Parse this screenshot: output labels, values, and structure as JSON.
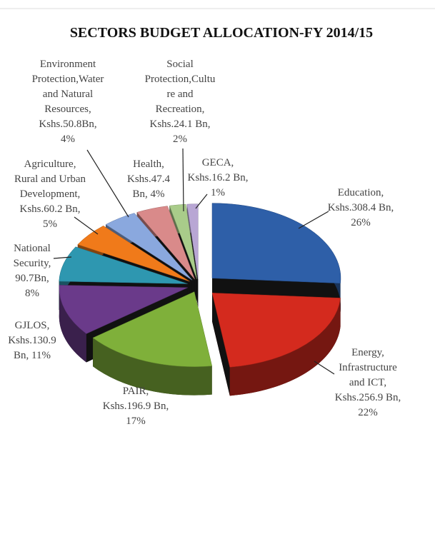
{
  "chart_data": {
    "type": "pie",
    "title": "SECTORS BUDGET ALLOCATION-FY 2014/15",
    "values": [
      308.4,
      256.9,
      196.9,
      130.9,
      90.7,
      60.2,
      50.8,
      47.4,
      24.1,
      16.2
    ],
    "labels": [
      [
        "Education,",
        "Kshs.308.4 Bn,",
        "26%"
      ],
      [
        "Energy,",
        "Infrastructure",
        "and ICT,",
        "Kshs.256.9 Bn,",
        "22%"
      ],
      [
        "PAIR,",
        "Kshs.196.9 Bn,",
        "17%"
      ],
      [
        "GJLOS,",
        "Kshs.130.9",
        "Bn, 11%"
      ],
      [
        "National",
        "Security,",
        "90.7Bn,",
        "8%"
      ],
      [
        "Agriculture,",
        "Rural and Urban",
        "Development,",
        "Kshs.60.2 Bn,",
        "5%"
      ],
      [
        "Environment",
        "Protection,Water",
        "and Natural",
        "Resources,",
        "Kshs.50.8Bn,",
        "4%"
      ],
      [
        "Health,",
        "Kshs.47.4",
        "Bn, 4%"
      ],
      [
        "Social",
        "Protection,Cultu",
        "re and",
        "Recreation,",
        "Kshs.24.1 Bn,",
        "2%"
      ],
      [
        "GECA,",
        "Kshs.16.2 Bn,",
        "1%"
      ]
    ],
    "colors": [
      "#2e5fa8",
      "#d42a1e",
      "#7fb03a",
      "#6a3a8a",
      "#2e97b0",
      "#f07a1a",
      "#8aa8de",
      "#d98a8a",
      "#a9cc8a",
      "#b8a6d4"
    ]
  }
}
